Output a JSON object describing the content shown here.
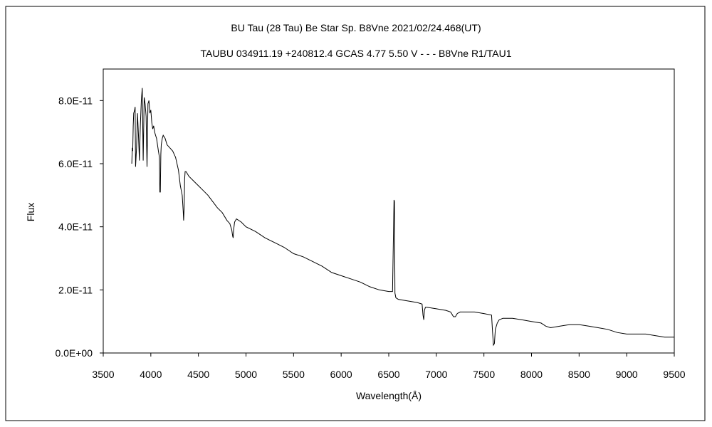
{
  "chart_data": {
    "type": "line",
    "title": "BU Tau (28 Tau)    Be Star    Sp. B8Vne    2021/02/24.468(UT)",
    "subtitle": "TAUBU 034911.19 +240812.4 GCAS 4.77 5.50 V - - - B8Vne R1/TAU1",
    "xlabel": "Wavelength(Å)",
    "ylabel": "Flux",
    "xlim": [
      3500,
      9500
    ],
    "ylim": [
      0,
      9e-11
    ],
    "x_ticks": [
      3500,
      4000,
      4500,
      5000,
      5500,
      6000,
      6500,
      7000,
      7500,
      8000,
      8500,
      9000,
      9500
    ],
    "x_tick_labels": [
      "3500",
      "4000",
      "4500",
      "5000",
      "5500",
      "6000",
      "6500",
      "7000",
      "7500",
      "8000",
      "8500",
      "9000",
      "9500"
    ],
    "y_ticks": [
      0,
      2e-11,
      4e-11,
      6e-11,
      8e-11
    ],
    "y_tick_labels": [
      "0.0E+00",
      "2.0E-11",
      "4.0E-11",
      "6.0E-11",
      "8.0E-11"
    ],
    "grid": false,
    "legend": "none",
    "series_color": "#000000",
    "series": [
      {
        "x": [
          3800,
          3805,
          3810,
          3815,
          3820,
          3830,
          3835,
          3840,
          3850,
          3860,
          3870,
          3880,
          3890,
          3900,
          3910,
          3920,
          3930,
          3940,
          3950,
          3960,
          3970,
          3980,
          3990,
          4000,
          4010,
          4020,
          4030,
          4040,
          4050,
          4060,
          4070,
          4080,
          4090,
          4095,
          4100,
          4105,
          4110,
          4120,
          4130,
          4150,
          4170,
          4200,
          4230,
          4260,
          4290,
          4310,
          4330,
          4340,
          4345,
          4350,
          4355,
          4360,
          4370,
          4380,
          4400,
          4450,
          4500,
          4550,
          4600,
          4650,
          4700,
          4750,
          4800,
          4830,
          4850,
          4860,
          4865,
          4870,
          4880,
          4900,
          4950,
          5000,
          5100,
          5200,
          5300,
          5400,
          5500,
          5600,
          5700,
          5800,
          5900,
          6000,
          6100,
          6200,
          6300,
          6400,
          6500,
          6540,
          6555,
          6560,
          6565,
          6575,
          6600,
          6700,
          6800,
          6850,
          6860,
          6868,
          6875,
          6885,
          6900,
          7000,
          7100,
          7150,
          7180,
          7200,
          7220,
          7250,
          7300,
          7400,
          7500,
          7580,
          7590,
          7600,
          7610,
          7620,
          7640,
          7660,
          7700,
          7800,
          7900,
          8000,
          8100,
          8150,
          8200,
          8300,
          8400,
          8500,
          8600,
          8700,
          8800,
          8900,
          9000,
          9100,
          9200,
          9300,
          9400,
          9500
        ],
        "y": [
          6e-11,
          6.5e-11,
          6.4e-11,
          7.2e-11,
          7.6e-11,
          7.7e-11,
          7.8e-11,
          5.9e-11,
          6.5e-11,
          7.6e-11,
          6.9e-11,
          6.1e-11,
          7.2e-11,
          8e-11,
          8.4e-11,
          6.1e-11,
          8.1e-11,
          7.9e-11,
          7.5e-11,
          5.9e-11,
          7.9e-11,
          8e-11,
          7.6e-11,
          7.7e-11,
          7.3e-11,
          7.1e-11,
          7.2e-11,
          7e-11,
          6.9e-11,
          6.8e-11,
          6.6e-11,
          6.4e-11,
          6.2e-11,
          5.1e-11,
          5.1e-11,
          6.3e-11,
          6.6e-11,
          6.8e-11,
          6.9e-11,
          6.8e-11,
          6.6e-11,
          6.5e-11,
          6.4e-11,
          6.2e-11,
          5.8e-11,
          5.3e-11,
          5e-11,
          4.5e-11,
          4.2e-11,
          4.6e-11,
          5.5e-11,
          5.75e-11,
          5.75e-11,
          5.7e-11,
          5.6e-11,
          5.45e-11,
          5.3e-11,
          5.15e-11,
          5e-11,
          4.8e-11,
          4.6e-11,
          4.45e-11,
          4.2e-11,
          4.1e-11,
          3.9e-11,
          3.7e-11,
          3.65e-11,
          3.9e-11,
          4.15e-11,
          4.25e-11,
          4.15e-11,
          4e-11,
          3.85e-11,
          3.65e-11,
          3.5e-11,
          3.35e-11,
          3.15e-11,
          3.05e-11,
          2.9e-11,
          2.75e-11,
          2.55e-11,
          2.45e-11,
          2.35e-11,
          2.25e-11,
          2.1e-11,
          2e-11,
          1.95e-11,
          1.95e-11,
          4.85e-11,
          4.8e-11,
          1.9e-11,
          1.75e-11,
          1.7e-11,
          1.65e-11,
          1.6e-11,
          1.55e-11,
          1.2e-11,
          1.05e-11,
          1.35e-11,
          1.45e-11,
          1.45e-11,
          1.4e-11,
          1.35e-11,
          1.3e-11,
          1.15e-11,
          1.15e-11,
          1.25e-11,
          1.3e-11,
          1.3e-11,
          1.3e-11,
          1.25e-11,
          1.2e-11,
          7e-12,
          2.5e-12,
          3e-12,
          7.5e-12,
          9.5e-12,
          1.05e-11,
          1.1e-11,
          1.1e-11,
          1.05e-11,
          1e-11,
          9.5e-12,
          8.5e-12,
          8e-12,
          8.5e-12,
          9e-12,
          9e-12,
          8.5e-12,
          8e-12,
          7.5e-12,
          6.5e-12,
          6e-12,
          6e-12,
          6e-12,
          5.5e-12,
          5e-12,
          5e-12
        ]
      }
    ]
  }
}
